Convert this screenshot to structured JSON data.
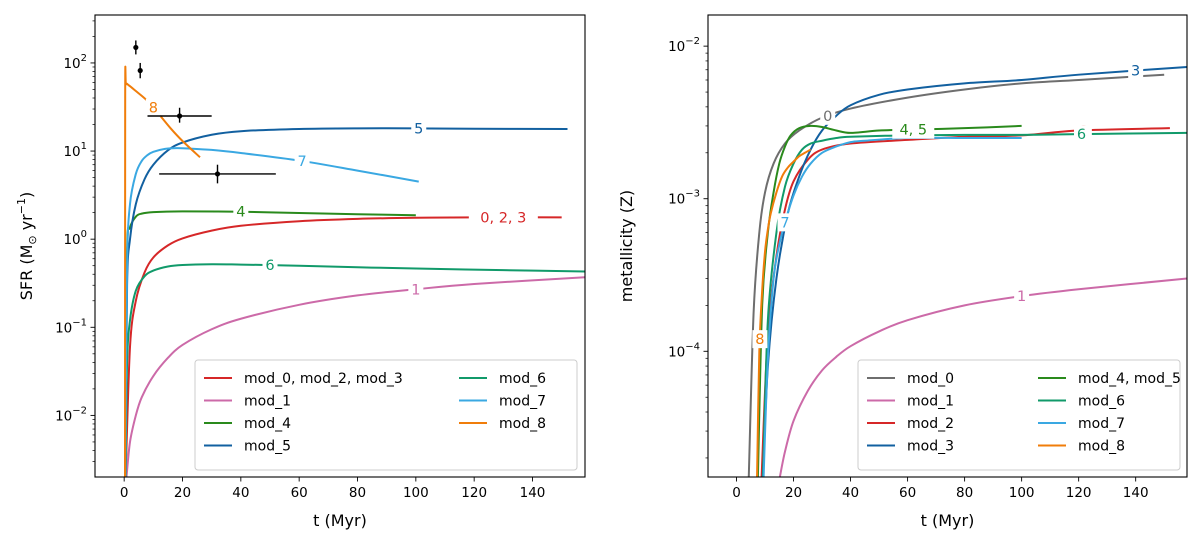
{
  "chart_data": [
    {
      "type": "line",
      "yscale": "log",
      "xlabel": "t (Myr)",
      "ylabel": "SFR (M⊙ yr⁻¹)",
      "xlim": [
        -10,
        158
      ],
      "ylim": [
        0.002,
        350
      ],
      "xticks": [
        {
          "v": 0,
          "label": "0"
        },
        {
          "v": 20,
          "label": "20"
        },
        {
          "v": 40,
          "label": "40"
        },
        {
          "v": 60,
          "label": "60"
        },
        {
          "v": 80,
          "label": "80"
        },
        {
          "v": 100,
          "label": "100"
        },
        {
          "v": 120,
          "label": "120"
        },
        {
          "v": 140,
          "label": "140"
        }
      ],
      "yticks": [
        {
          "v": 0.01,
          "base": "10",
          "exp": "−2"
        },
        {
          "v": 0.1,
          "base": "10",
          "exp": "−1"
        },
        {
          "v": 1,
          "base": "10",
          "exp": "0"
        },
        {
          "v": 10,
          "base": "10",
          "exp": "1"
        },
        {
          "v": 100,
          "base": "10",
          "exp": "2"
        }
      ],
      "legend_position": "lower-right",
      "legend_columns": 2,
      "series": [
        {
          "name": "mod_0, mod_2, mod_3",
          "color": "#d62728",
          "label": "0, 2, 3",
          "label_x": 130,
          "x": [
            0.5,
            2,
            4,
            7,
            10,
            15,
            20,
            30,
            40,
            60,
            80,
            100,
            120,
            150
          ],
          "y": [
            0.002,
            0.06,
            0.2,
            0.42,
            0.62,
            0.85,
            1.02,
            1.25,
            1.42,
            1.6,
            1.7,
            1.75,
            1.77,
            1.77
          ]
        },
        {
          "name": "mod_1",
          "color": "#cc6aa8",
          "label": "1",
          "label_x": 100,
          "x": [
            0.8,
            2,
            4,
            6,
            10,
            15,
            20,
            30,
            40,
            60,
            80,
            100,
            120,
            158
          ],
          "y": [
            0.002,
            0.005,
            0.01,
            0.016,
            0.028,
            0.045,
            0.063,
            0.095,
            0.125,
            0.18,
            0.23,
            0.27,
            0.31,
            0.37
          ]
        },
        {
          "name": "mod_4",
          "color": "#2a8a1c",
          "label": "4",
          "label_x": 40,
          "x": [
            0.3,
            1,
            2,
            4,
            6,
            10,
            20,
            40,
            60,
            80,
            100
          ],
          "y": [
            0.002,
            0.7,
            1.35,
            1.8,
            1.95,
            2.03,
            2.07,
            2.05,
            1.98,
            1.92,
            1.87
          ]
        },
        {
          "name": "mod_5",
          "color": "#1260a0",
          "label": "5",
          "label_x": 101,
          "x": [
            0.5,
            1,
            2,
            4,
            7,
            10,
            15,
            20,
            30,
            40,
            60,
            80,
            100,
            120,
            152
          ],
          "y": [
            0.002,
            0.3,
            1.0,
            2.5,
            4.8,
            7.0,
            10.2,
            12.5,
            15.3,
            16.8,
            17.8,
            18.1,
            18.1,
            17.9,
            17.8
          ]
        },
        {
          "name": "mod_6",
          "color": "#119a6a",
          "label": "6",
          "label_x": 50,
          "x": [
            0.5,
            1,
            2,
            4,
            7,
            10,
            15,
            20,
            30,
            40,
            60,
            80,
            100,
            130,
            158
          ],
          "y": [
            0.002,
            0.04,
            0.12,
            0.26,
            0.38,
            0.44,
            0.49,
            0.51,
            0.52,
            0.515,
            0.5,
            0.48,
            0.465,
            0.445,
            0.43
          ]
        },
        {
          "name": "mod_7",
          "color": "#3aa8e2",
          "label": "7",
          "label_x": 61,
          "x": [
            0.4,
            1,
            2,
            4,
            6,
            8,
            10,
            14,
            18,
            22,
            30,
            40,
            60,
            80,
            101
          ],
          "y": [
            0.002,
            0.5,
            2.5,
            5.5,
            7.7,
            9.0,
            9.8,
            10.6,
            10.8,
            10.7,
            10.3,
            9.5,
            7.8,
            6.0,
            4.5
          ]
        },
        {
          "name": "mod_8",
          "color": "#f07d0a",
          "label": "8",
          "label_x": 10,
          "x": [
            0.3,
            0.35,
            0.6,
            1.5,
            4,
            8,
            12,
            16,
            20,
            26
          ],
          "y": [
            0.002,
            40,
            57,
            56,
            48,
            37,
            26,
            18,
            13,
            8.5
          ]
        }
      ],
      "observations": [
        {
          "x": 4,
          "y": 150,
          "xerr": 0,
          "yerr_low": 25,
          "yerr_high": 30
        },
        {
          "x": 5.5,
          "y": 82,
          "xerr": 0,
          "yerr_low": 15,
          "yerr_high": 18
        },
        {
          "x": 19,
          "y": 25,
          "xerr": 11,
          "yerr_low": 4,
          "yerr_high": 6
        },
        {
          "x": 32,
          "y": 5.5,
          "xerr": 20,
          "yerr_low": 1.2,
          "yerr_high": 1.5
        }
      ]
    },
    {
      "type": "line",
      "yscale": "log",
      "xlabel": "t (Myr)",
      "ylabel": "metallicity (Z)",
      "xlim": [
        -10,
        158
      ],
      "ylim": [
        1.5e-05,
        0.016
      ],
      "xticks": [
        {
          "v": 0,
          "label": "0"
        },
        {
          "v": 20,
          "label": "20"
        },
        {
          "v": 40,
          "label": "40"
        },
        {
          "v": 60,
          "label": "60"
        },
        {
          "v": 80,
          "label": "80"
        },
        {
          "v": 100,
          "label": "100"
        },
        {
          "v": 120,
          "label": "120"
        },
        {
          "v": 140,
          "label": "140"
        }
      ],
      "yticks": [
        {
          "v": 0.0001,
          "base": "10",
          "exp": "−4"
        },
        {
          "v": 0.001,
          "base": "10",
          "exp": "−3"
        },
        {
          "v": 0.01,
          "base": "10",
          "exp": "−2"
        }
      ],
      "legend_position": "lower-right",
      "legend_columns": 2,
      "series": [
        {
          "name": "mod_0",
          "color": "#6e6e6e",
          "label": "0",
          "label_x": 32,
          "x": [
            4.3,
            6,
            8,
            10,
            13,
            17,
            22,
            30,
            40,
            60,
            80,
            100,
            120,
            150
          ],
          "y": [
            1.5e-05,
            0.00018,
            0.0006,
            0.0011,
            0.0017,
            0.0023,
            0.0028,
            0.0034,
            0.0039,
            0.0046,
            0.0052,
            0.0057,
            0.006,
            0.0065
          ]
        },
        {
          "name": "mod_1",
          "color": "#cc6aa8",
          "label": "1",
          "label_x": 100,
          "x": [
            15.2,
            17,
            20,
            25,
            30,
            35,
            40,
            50,
            60,
            80,
            100,
            120,
            158
          ],
          "y": [
            1.5e-05,
            2.2e-05,
            3.5e-05,
            5.5e-05,
            7.5e-05,
            9.2e-05,
            0.000108,
            0.000135,
            0.00016,
            0.0002,
            0.00023,
            0.000255,
            0.0003
          ]
        },
        {
          "name": "mod_2",
          "color": "#d62728",
          "label": "2",
          "label_x": 122,
          "x": [
            8.8,
            11,
            14,
            17,
            20,
            25,
            30,
            40,
            60,
            80,
            100,
            120,
            152
          ],
          "y": [
            1.5e-05,
            0.00013,
            0.00042,
            0.00085,
            0.0013,
            0.0018,
            0.0021,
            0.0023,
            0.00243,
            0.00255,
            0.0026,
            0.0028,
            0.0029
          ]
        },
        {
          "name": "mod_3",
          "color": "#1260a0",
          "label": "3",
          "label_x": 140,
          "x": [
            9.2,
            11,
            14,
            18,
            22,
            26,
            30,
            35,
            40,
            50,
            60,
            80,
            100,
            120,
            158
          ],
          "y": [
            1.5e-05,
            8e-05,
            0.0003,
            0.0008,
            0.0014,
            0.0021,
            0.0028,
            0.0035,
            0.0041,
            0.0048,
            0.0052,
            0.0057,
            0.006,
            0.0065,
            0.0073
          ]
        },
        {
          "name": "mod_4, mod_5",
          "color": "#2a8a1c",
          "label": "4, 5",
          "label_x": 62,
          "x": [
            7.5,
            9,
            11,
            13,
            15,
            17,
            19,
            22,
            26,
            30,
            35,
            40,
            50,
            60,
            80,
            100
          ],
          "y": [
            1.5e-05,
            0.0002,
            0.0006,
            0.0011,
            0.0017,
            0.0022,
            0.0026,
            0.0029,
            0.003,
            0.00295,
            0.0028,
            0.0027,
            0.0028,
            0.00283,
            0.0029,
            0.003
          ]
        },
        {
          "name": "mod_6",
          "color": "#119a6a",
          "label": "6",
          "label_x": 121,
          "x": [
            9.3,
            11,
            14,
            17,
            20,
            23,
            26,
            30,
            35,
            40,
            60,
            80,
            100,
            120,
            158
          ],
          "y": [
            1.5e-05,
            0.00016,
            0.0006,
            0.0012,
            0.0017,
            0.0021,
            0.0023,
            0.0024,
            0.0025,
            0.00255,
            0.0026,
            0.00262,
            0.00262,
            0.00265,
            0.0027
          ]
        },
        {
          "name": "mod_7",
          "color": "#3aa8e2",
          "label": "7",
          "label_x": 17,
          "x": [
            9.5,
            11,
            13,
            15,
            17,
            20,
            23,
            26,
            30,
            35,
            40,
            45,
            60,
            80,
            100
          ],
          "y": [
            1.5e-05,
            9e-05,
            0.0003,
            0.0005,
            0.0007,
            0.00105,
            0.0014,
            0.0017,
            0.002,
            0.0022,
            0.00235,
            0.0024,
            0.0025,
            0.0025,
            0.0025
          ]
        },
        {
          "name": "mod_8",
          "color": "#f07d0a",
          "label": "8",
          "label_x": 8.2,
          "x": [
            7.2,
            8,
            9,
            10,
            11,
            12,
            14,
            16,
            18,
            20,
            22,
            24,
            26
          ],
          "y": [
            1.5e-05,
            0.0001,
            0.00025,
            0.00045,
            0.00063,
            0.0008,
            0.0011,
            0.0014,
            0.0016,
            0.00175,
            0.0019,
            0.002,
            0.0021
          ]
        }
      ]
    }
  ]
}
